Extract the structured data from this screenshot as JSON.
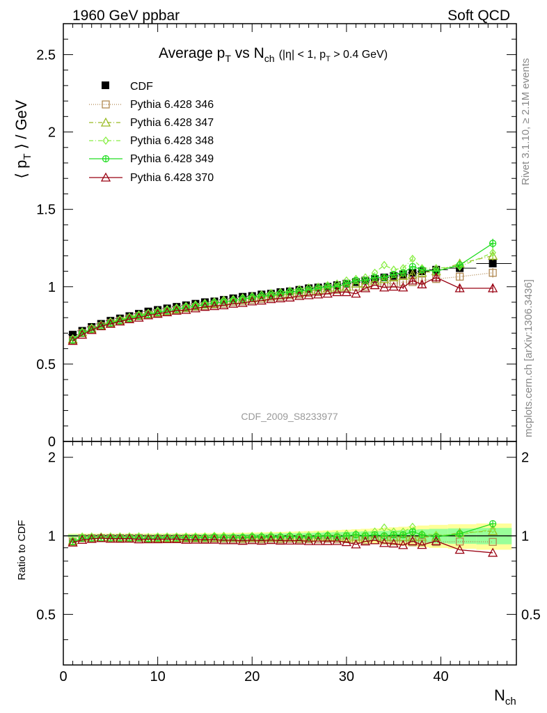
{
  "header": {
    "left": "1960 GeV ppbar",
    "right": "Soft QCD"
  },
  "side": {
    "rivet": "Rivet 3.1.10, ≥ 2.1M events",
    "mcplots": "mcplots.cern.ch [arXiv:1306.3436]"
  },
  "watermark": "CDF_2009_S8233977",
  "colors": {
    "cdf": "#000000",
    "p346": "#b08850",
    "p347": "#99bb22",
    "p348": "#88ee44",
    "p349": "#22dd22",
    "p370": "#990011",
    "band_yellow": "#ffff99",
    "band_green": "#99ff99"
  },
  "chart_data": {
    "type": "scatter",
    "title": {
      "main": "Average p",
      "sub1": "T",
      "mid": " vs N",
      "sub2": "ch",
      "tail_a": "(|η| < 1, p",
      "tail_sub": "T",
      "tail_b": " > 0.4 GeV)"
    },
    "ylabel": {
      "a": "⟨ p",
      "sub": "T",
      "b": " ⟩ / GeV"
    },
    "xlabel": {
      "main": "N",
      "sub": "ch"
    },
    "ratio_ylabel": "Ratio to CDF",
    "xlim": [
      0,
      48
    ],
    "ylim": [
      0,
      2.7
    ],
    "ratio_ylim": [
      0.32,
      2.3
    ],
    "x_ticks": [
      "0",
      "10",
      "20",
      "30",
      "40"
    ],
    "y_ticks": [
      "0",
      "0.5",
      "1",
      "1.5",
      "2",
      "2.5"
    ],
    "ratio_ticks": [
      "0.5",
      "1",
      "2"
    ],
    "legend": {
      "cdf": "CDF",
      "p346": "Pythia 6.428 346",
      "p347": "Pythia 6.428 347",
      "p348": "Pythia 6.428 348",
      "p349": "Pythia 6.428 349",
      "p370": "Pythia 6.428 370"
    },
    "x": [
      1,
      2,
      3,
      4,
      5,
      6,
      7,
      8,
      9,
      10,
      11,
      12,
      13,
      14,
      15,
      16,
      17,
      18,
      19,
      20,
      21,
      22,
      23,
      24,
      25,
      26,
      27,
      28,
      29,
      30,
      31,
      32,
      33,
      34,
      35,
      36,
      37,
      38,
      39.5,
      42,
      45.5
    ],
    "series": [
      {
        "key": "cdf",
        "values": [
          0.69,
          0.715,
          0.74,
          0.76,
          0.78,
          0.795,
          0.81,
          0.825,
          0.84,
          0.85,
          0.86,
          0.87,
          0.88,
          0.89,
          0.9,
          0.905,
          0.915,
          0.925,
          0.935,
          0.94,
          0.95,
          0.955,
          0.965,
          0.97,
          0.98,
          0.99,
          0.995,
          1.0,
          1.01,
          1.02,
          1.03,
          1.04,
          1.05,
          1.06,
          1.07,
          1.08,
          1.09,
          1.1,
          1.11,
          1.12,
          1.15
        ]
      },
      {
        "key": "p346",
        "values": [
          0.655,
          0.7,
          0.725,
          0.745,
          0.765,
          0.78,
          0.795,
          0.81,
          0.82,
          0.83,
          0.84,
          0.85,
          0.86,
          0.87,
          0.875,
          0.885,
          0.89,
          0.9,
          0.905,
          0.915,
          0.92,
          0.93,
          0.935,
          0.945,
          0.95,
          0.96,
          0.965,
          0.975,
          0.98,
          0.99,
          1.0,
          1.0,
          1.01,
          1.02,
          1.02,
          1.03,
          1.03,
          1.04,
          1.05,
          1.065,
          1.09
        ]
      },
      {
        "key": "p347",
        "values": [
          0.66,
          0.705,
          0.73,
          0.75,
          0.77,
          0.785,
          0.8,
          0.815,
          0.825,
          0.835,
          0.845,
          0.855,
          0.865,
          0.875,
          0.885,
          0.89,
          0.9,
          0.91,
          0.915,
          0.925,
          0.93,
          0.94,
          0.945,
          0.955,
          0.96,
          0.97,
          0.98,
          0.99,
          0.995,
          1.0,
          1.02,
          1.02,
          1.04,
          1.05,
          1.06,
          1.07,
          1.08,
          1.09,
          1.1,
          1.15,
          1.2
        ]
      },
      {
        "key": "p348",
        "values": [
          0.665,
          0.71,
          0.735,
          0.755,
          0.775,
          0.79,
          0.805,
          0.82,
          0.83,
          0.845,
          0.855,
          0.865,
          0.875,
          0.885,
          0.895,
          0.905,
          0.915,
          0.92,
          0.93,
          0.94,
          0.95,
          0.96,
          0.965,
          0.975,
          0.985,
          0.995,
          1.0,
          1.01,
          1.02,
          1.04,
          1.05,
          1.06,
          1.09,
          1.14,
          1.11,
          1.12,
          1.18,
          1.12,
          1.12,
          1.13,
          1.22
        ]
      },
      {
        "key": "p349",
        "values": [
          0.655,
          0.7,
          0.725,
          0.745,
          0.765,
          0.78,
          0.795,
          0.81,
          0.82,
          0.835,
          0.845,
          0.855,
          0.865,
          0.875,
          0.885,
          0.895,
          0.9,
          0.91,
          0.92,
          0.93,
          0.94,
          0.945,
          0.955,
          0.965,
          0.97,
          0.98,
          0.99,
          1.0,
          1.0,
          1.02,
          1.04,
          1.04,
          1.06,
          1.06,
          1.08,
          1.09,
          1.13,
          1.11,
          1.1,
          1.14,
          1.28
        ]
      },
      {
        "key": "p370",
        "values": [
          0.65,
          0.69,
          0.72,
          0.745,
          0.76,
          0.775,
          0.79,
          0.8,
          0.815,
          0.825,
          0.835,
          0.845,
          0.85,
          0.86,
          0.87,
          0.875,
          0.88,
          0.89,
          0.895,
          0.905,
          0.91,
          0.92,
          0.925,
          0.93,
          0.94,
          0.945,
          0.95,
          0.955,
          0.965,
          0.965,
          0.955,
          0.99,
          1.01,
          0.995,
          1.0,
          0.995,
          1.04,
          1.015,
          1.06,
          0.99,
          0.99
        ]
      }
    ]
  }
}
